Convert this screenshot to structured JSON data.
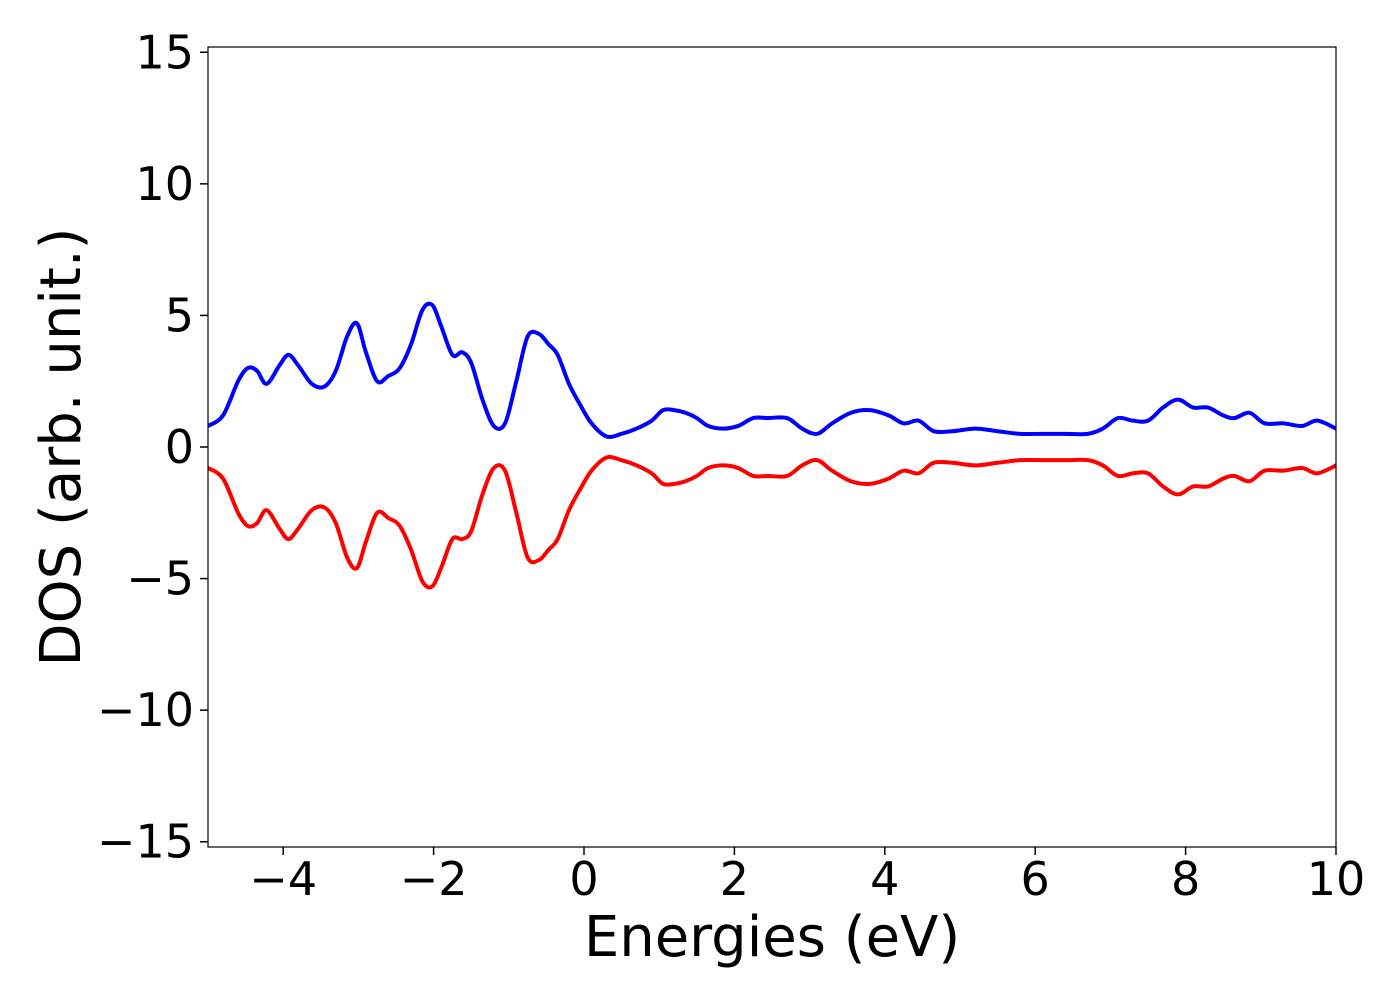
{
  "chart_data": {
    "type": "line",
    "title": "",
    "xlabel": "Energies (eV)",
    "ylabel": "DOS (arb. unit.)",
    "xlim": [
      -5,
      10
    ],
    "ylim": [
      -15.2,
      15.2
    ],
    "xticks": [
      -4,
      -2,
      0,
      2,
      4,
      6,
      8,
      10
    ],
    "xtick_labels": [
      "−4",
      "−2",
      "0",
      "2",
      "4",
      "6",
      "8",
      "10"
    ],
    "yticks": [
      -15,
      -10,
      -5,
      0,
      5,
      10,
      15
    ],
    "ytick_labels": [
      "−15",
      "−10",
      "−5",
      "0",
      "5",
      "10",
      "15"
    ],
    "grid": false,
    "legend": "none",
    "series": [
      {
        "color": "#0000ff",
        "x": [
          -5.0,
          -4.8,
          -4.6,
          -4.47,
          -4.35,
          -4.22,
          -4.05,
          -3.93,
          -3.8,
          -3.62,
          -3.45,
          -3.3,
          -3.15,
          -3.02,
          -2.9,
          -2.75,
          -2.6,
          -2.45,
          -2.3,
          -2.15,
          -2.02,
          -1.9,
          -1.75,
          -1.62,
          -1.5,
          -1.35,
          -1.2,
          -1.05,
          -0.9,
          -0.75,
          -0.6,
          -0.47,
          -0.35,
          -0.2,
          -0.05,
          0.1,
          0.3,
          0.5,
          0.7,
          0.9,
          1.05,
          1.2,
          1.35,
          1.5,
          1.65,
          1.85,
          2.05,
          2.25,
          2.45,
          2.7,
          2.9,
          3.1,
          3.3,
          3.55,
          3.8,
          4.05,
          4.25,
          4.45,
          4.65,
          4.9,
          5.2,
          5.5,
          5.8,
          6.1,
          6.4,
          6.7,
          6.9,
          7.1,
          7.3,
          7.5,
          7.7,
          7.9,
          8.1,
          8.3,
          8.5,
          8.65,
          8.85,
          9.05,
          9.3,
          9.55,
          9.75,
          10.0
        ],
        "y": [
          0.8,
          1.2,
          2.5,
          3.0,
          2.9,
          2.4,
          3.1,
          3.5,
          3.1,
          2.4,
          2.3,
          2.9,
          4.2,
          4.7,
          3.6,
          2.5,
          2.7,
          3.0,
          3.9,
          5.2,
          5.4,
          4.6,
          3.5,
          3.6,
          3.2,
          1.8,
          0.8,
          0.9,
          2.5,
          4.2,
          4.3,
          3.9,
          3.5,
          2.4,
          1.6,
          0.9,
          0.4,
          0.5,
          0.7,
          1.0,
          1.4,
          1.4,
          1.3,
          1.1,
          0.8,
          0.7,
          0.8,
          1.1,
          1.1,
          1.1,
          0.7,
          0.5,
          0.9,
          1.3,
          1.4,
          1.2,
          0.9,
          1.0,
          0.6,
          0.6,
          0.7,
          0.6,
          0.5,
          0.5,
          0.5,
          0.5,
          0.7,
          1.1,
          1.0,
          1.0,
          1.5,
          1.8,
          1.5,
          1.5,
          1.2,
          1.1,
          1.3,
          0.9,
          0.9,
          0.8,
          1.0,
          0.7
        ]
      },
      {
        "color": "#ff0000",
        "x": [
          -5.0,
          -4.8,
          -4.6,
          -4.47,
          -4.35,
          -4.22,
          -4.05,
          -3.93,
          -3.8,
          -3.62,
          -3.45,
          -3.3,
          -3.15,
          -3.02,
          -2.9,
          -2.75,
          -2.6,
          -2.45,
          -2.3,
          -2.15,
          -2.02,
          -1.9,
          -1.75,
          -1.62,
          -1.5,
          -1.35,
          -1.2,
          -1.05,
          -0.9,
          -0.75,
          -0.6,
          -0.47,
          -0.35,
          -0.2,
          -0.05,
          0.1,
          0.3,
          0.5,
          0.7,
          0.9,
          1.05,
          1.2,
          1.35,
          1.5,
          1.65,
          1.85,
          2.05,
          2.25,
          2.45,
          2.7,
          2.9,
          3.1,
          3.3,
          3.55,
          3.8,
          4.05,
          4.25,
          4.45,
          4.65,
          4.9,
          5.2,
          5.5,
          5.8,
          6.1,
          6.4,
          6.7,
          6.9,
          7.1,
          7.3,
          7.5,
          7.7,
          7.9,
          8.1,
          8.3,
          8.5,
          8.65,
          8.85,
          9.05,
          9.3,
          9.55,
          9.75,
          10.0
        ],
        "y": [
          -0.8,
          -1.2,
          -2.5,
          -3.0,
          -2.9,
          -2.4,
          -3.1,
          -3.5,
          -3.1,
          -2.4,
          -2.3,
          -2.9,
          -4.2,
          -4.6,
          -3.6,
          -2.5,
          -2.7,
          -3.0,
          -3.9,
          -5.1,
          -5.3,
          -4.6,
          -3.5,
          -3.5,
          -3.2,
          -1.8,
          -0.8,
          -0.9,
          -2.5,
          -4.2,
          -4.3,
          -3.9,
          -3.5,
          -2.4,
          -1.6,
          -0.9,
          -0.4,
          -0.5,
          -0.7,
          -1.0,
          -1.4,
          -1.4,
          -1.3,
          -1.1,
          -0.8,
          -0.7,
          -0.8,
          -1.1,
          -1.1,
          -1.1,
          -0.7,
          -0.5,
          -0.9,
          -1.3,
          -1.4,
          -1.2,
          -0.9,
          -1.0,
          -0.6,
          -0.6,
          -0.7,
          -0.6,
          -0.5,
          -0.5,
          -0.5,
          -0.5,
          -0.7,
          -1.1,
          -1.0,
          -1.0,
          -1.5,
          -1.8,
          -1.5,
          -1.5,
          -1.2,
          -1.1,
          -1.3,
          -0.9,
          -0.9,
          -0.8,
          -1.0,
          -0.7
        ]
      }
    ]
  }
}
